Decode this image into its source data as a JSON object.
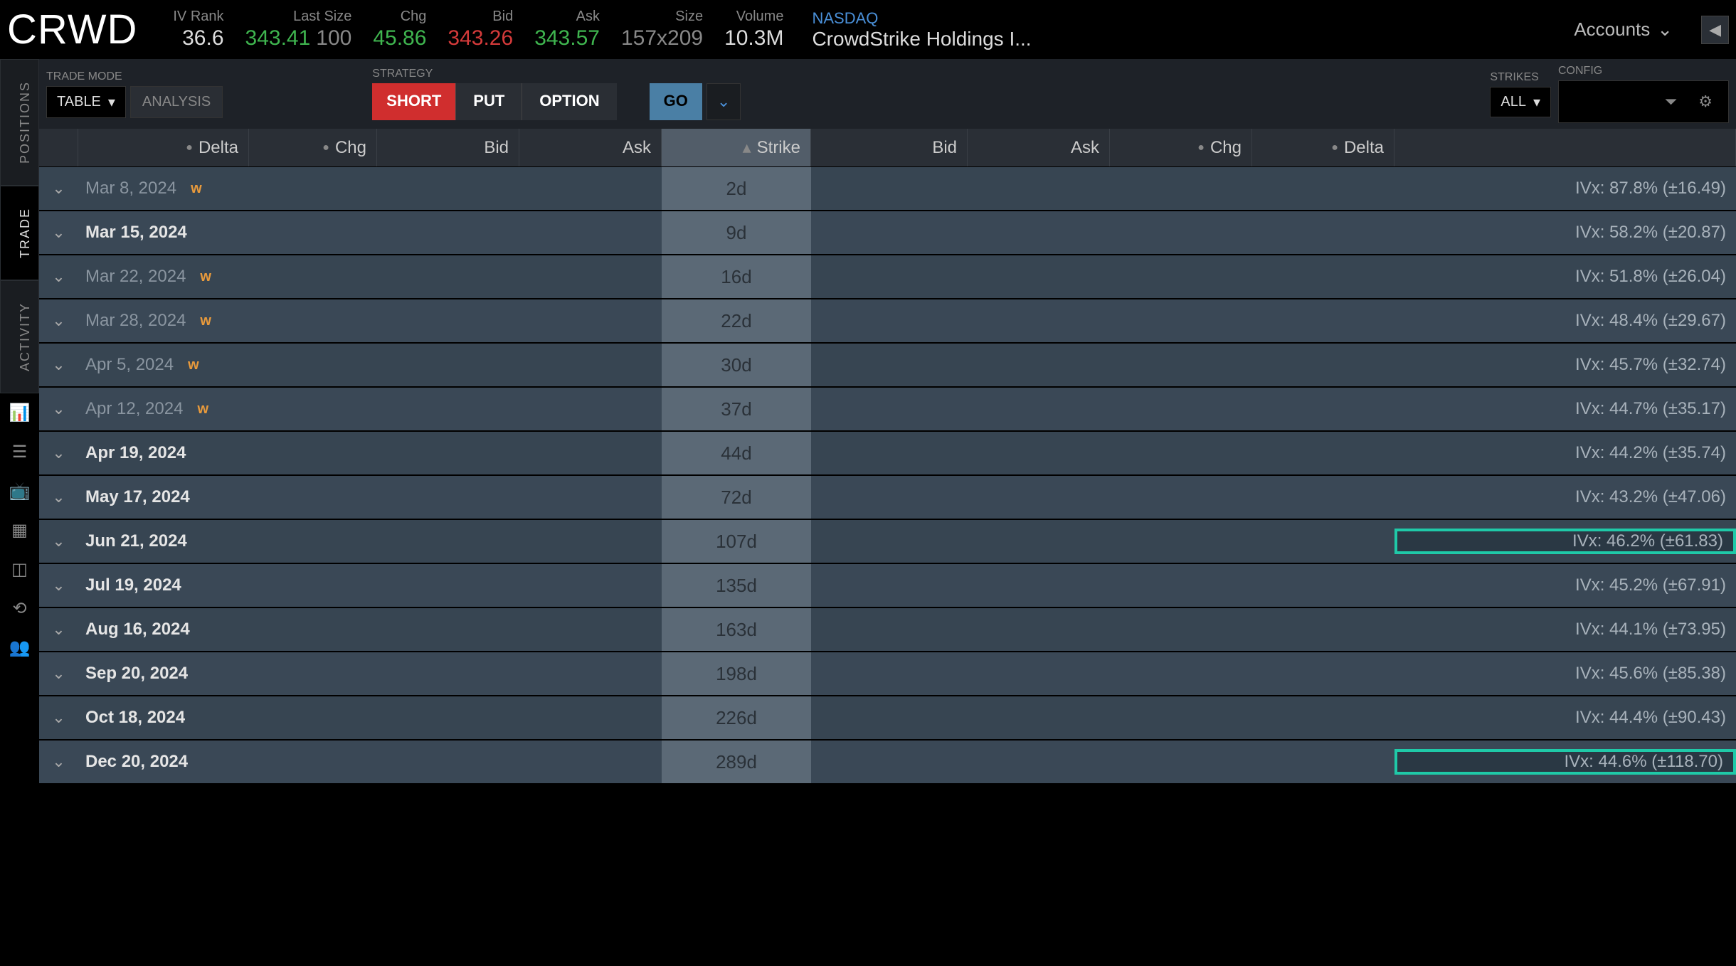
{
  "header": {
    "ticker": "CRWD",
    "iv_rank_label": "IV Rank",
    "iv_rank": "36.6",
    "last_size_label": "Last Size",
    "last": "343.41",
    "last_size": "100",
    "chg_label": "Chg",
    "chg": "45.86",
    "bid_label": "Bid",
    "bid": "343.26",
    "ask_label": "Ask",
    "ask": "343.57",
    "size_label": "Size",
    "size": "157x209",
    "volume_label": "Volume",
    "volume": "10.3M",
    "exchange": "NASDAQ",
    "company": "CrowdStrike Holdings I...",
    "accounts_label": "Accounts"
  },
  "toolbar": {
    "trade_mode_label": "TRADE MODE",
    "table": "TABLE",
    "analysis": "ANALYSIS",
    "strategy_label": "STRATEGY",
    "short": "SHORT",
    "put": "PUT",
    "option": "OPTION",
    "go": "GO",
    "strikes_label": "STRIKES",
    "strikes_value": "ALL",
    "config_label": "CONFIG"
  },
  "tabs": {
    "positions": "POSITIONS",
    "trade": "TRADE",
    "activity": "ACTIVITY"
  },
  "columns": {
    "delta_l": "Delta",
    "chg_l": "Chg",
    "bid_l": "Bid",
    "ask_l": "Ask",
    "strike": "Strike",
    "bid_r": "Bid",
    "ask_r": "Ask",
    "chg_r": "Chg",
    "delta_r": "Delta"
  },
  "rows": [
    {
      "date": "Mar 8, 2024",
      "weekly": true,
      "bold": false,
      "days": "2d",
      "ivx": "IVx: 87.8% (±16.49)",
      "hl": false
    },
    {
      "date": "Mar 15, 2024",
      "weekly": false,
      "bold": true,
      "days": "9d",
      "ivx": "IVx: 58.2% (±20.87)",
      "hl": false
    },
    {
      "date": "Mar 22, 2024",
      "weekly": true,
      "bold": false,
      "days": "16d",
      "ivx": "IVx: 51.8% (±26.04)",
      "hl": false
    },
    {
      "date": "Mar 28, 2024",
      "weekly": true,
      "bold": false,
      "days": "22d",
      "ivx": "IVx: 48.4% (±29.67)",
      "hl": false
    },
    {
      "date": "Apr 5, 2024",
      "weekly": true,
      "bold": false,
      "days": "30d",
      "ivx": "IVx: 45.7% (±32.74)",
      "hl": false
    },
    {
      "date": "Apr 12, 2024",
      "weekly": true,
      "bold": false,
      "days": "37d",
      "ivx": "IVx: 44.7% (±35.17)",
      "hl": false
    },
    {
      "date": "Apr 19, 2024",
      "weekly": false,
      "bold": true,
      "days": "44d",
      "ivx": "IVx: 44.2% (±35.74)",
      "hl": false
    },
    {
      "date": "May 17, 2024",
      "weekly": false,
      "bold": true,
      "days": "72d",
      "ivx": "IVx: 43.2% (±47.06)",
      "hl": false
    },
    {
      "date": "Jun 21, 2024",
      "weekly": false,
      "bold": true,
      "days": "107d",
      "ivx": "IVx: 46.2% (±61.83)",
      "hl": true
    },
    {
      "date": "Jul 19, 2024",
      "weekly": false,
      "bold": true,
      "days": "135d",
      "ivx": "IVx: 45.2% (±67.91)",
      "hl": false
    },
    {
      "date": "Aug 16, 2024",
      "weekly": false,
      "bold": true,
      "days": "163d",
      "ivx": "IVx: 44.1% (±73.95)",
      "hl": false
    },
    {
      "date": "Sep 20, 2024",
      "weekly": false,
      "bold": true,
      "days": "198d",
      "ivx": "IVx: 45.6% (±85.38)",
      "hl": false
    },
    {
      "date": "Oct 18, 2024",
      "weekly": false,
      "bold": true,
      "days": "226d",
      "ivx": "IVx: 44.4% (±90.43)",
      "hl": false
    },
    {
      "date": "Dec 20, 2024",
      "weekly": false,
      "bold": true,
      "days": "289d",
      "ivx": "IVx: 44.6% (±118.70)",
      "hl": true
    }
  ],
  "colors": {
    "green": "#3fb54f",
    "red": "#d43a3a",
    "short_bg": "#d02e2e",
    "go_bg": "#4a7fa5",
    "highlight_border": "#1fc9a8",
    "row_bg": "#374552",
    "strike_bg": "#5b6976",
    "weekly_badge": "#e89a3c"
  }
}
